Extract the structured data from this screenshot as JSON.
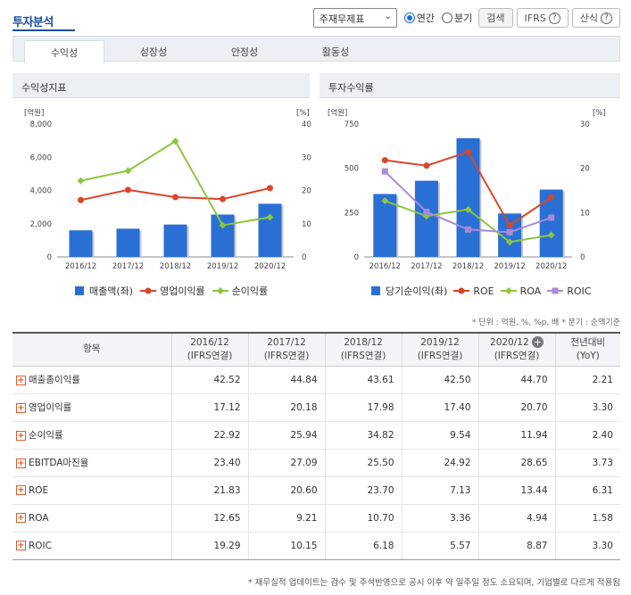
{
  "title": "투자분석",
  "controls": {
    "select_value": "주재무제표",
    "radio_annual": "연간",
    "radio_quarter": "분기",
    "search_button": "검색",
    "ifrs_button": "IFRS",
    "formula_button": "산식",
    "help_mark": "?"
  },
  "tabs": [
    "수익성",
    "성장성",
    "안정성",
    "활동성"
  ],
  "left_panel": {
    "title": "수익성지표",
    "left_unit": "[억원]",
    "right_unit": "[%]",
    "legend": [
      "매출액(좌)",
      "영업이익률",
      "순이익률"
    ]
  },
  "right_panel": {
    "title": "투자수익률",
    "left_unit": "[억원]",
    "right_unit": "[%]",
    "legend": [
      "당기순이익(좌)",
      "ROE",
      "ROA",
      "ROIC"
    ]
  },
  "chart_data": [
    {
      "type": "bar",
      "categories": [
        "2016/12",
        "2017/12",
        "2018/12",
        "2019/12",
        "2020/12"
      ],
      "y_left_ticks": [
        "0",
        "2,000",
        "4,000",
        "6,000",
        "8,000"
      ],
      "y_right_ticks": [
        "0",
        "10",
        "20",
        "30",
        "40"
      ],
      "ylim_left": [
        0,
        8000
      ],
      "ylim_right": [
        0,
        40
      ],
      "series": [
        {
          "name": "매출액(좌)",
          "kind": "bar",
          "axis": "left",
          "color": "#2a6fd4",
          "values": [
            1600,
            1700,
            1950,
            2550,
            3200
          ]
        },
        {
          "name": "영업이익률",
          "kind": "line",
          "axis": "right",
          "color": "#d9452b",
          "values": [
            17.12,
            20.18,
            17.98,
            17.4,
            20.7
          ]
        },
        {
          "name": "순이익률",
          "kind": "line",
          "axis": "right",
          "color": "#8cc63f",
          "values": [
            22.92,
            25.94,
            34.82,
            9.54,
            11.94
          ]
        }
      ]
    },
    {
      "type": "bar",
      "categories": [
        "2016/12",
        "2017/12",
        "2018/12",
        "2019/12",
        "2020/12"
      ],
      "y_left_ticks": [
        "0",
        "250",
        "500",
        "750"
      ],
      "y_right_ticks": [
        "0",
        "10",
        "20",
        "30"
      ],
      "ylim_left": [
        0,
        750
      ],
      "ylim_right": [
        0,
        30
      ],
      "series": [
        {
          "name": "당기순이익(좌)",
          "kind": "bar",
          "axis": "left",
          "color": "#2a6fd4",
          "values": [
            355,
            430,
            670,
            245,
            380
          ]
        },
        {
          "name": "ROE",
          "kind": "line",
          "axis": "right",
          "color": "#d9452b",
          "values": [
            21.83,
            20.6,
            23.7,
            7.13,
            13.44
          ]
        },
        {
          "name": "ROA",
          "kind": "line",
          "axis": "right",
          "color": "#8cc63f",
          "values": [
            12.65,
            9.21,
            10.7,
            3.36,
            4.94
          ]
        },
        {
          "name": "ROIC",
          "kind": "line",
          "axis": "right",
          "color": "#a98ad8",
          "values": [
            19.29,
            10.15,
            6.18,
            5.57,
            8.87
          ]
        }
      ]
    }
  ],
  "unit_note": "* 단위 : 억원, %, %p, 배    * 분기 : 순액기준",
  "table": {
    "headers": [
      {
        "line1": "항목",
        "line2": ""
      },
      {
        "line1": "2016/12",
        "line2": "(IFRS연결)"
      },
      {
        "line1": "2017/12",
        "line2": "(IFRS연결)"
      },
      {
        "line1": "2018/12",
        "line2": "(IFRS연결)"
      },
      {
        "line1": "2019/12",
        "line2": "(IFRS연결)"
      },
      {
        "line1": "2020/12",
        "line2": "(IFRS연결)"
      },
      {
        "line1": "전년대비",
        "line2": "(YoY)"
      }
    ],
    "header_plus": "+",
    "rows": [
      {
        "label": "매출총이익률",
        "values": [
          "42.52",
          "44.84",
          "43.61",
          "42.50",
          "44.70",
          "2.21"
        ]
      },
      {
        "label": "영업이익률",
        "values": [
          "17.12",
          "20.18",
          "17.98",
          "17.40",
          "20.70",
          "3.30"
        ]
      },
      {
        "label": "순이익률",
        "values": [
          "22.92",
          "25.94",
          "34.82",
          "9.54",
          "11.94",
          "2.40"
        ]
      },
      {
        "label": "EBITDA마진율",
        "values": [
          "23.40",
          "27.09",
          "25.50",
          "24.92",
          "28.65",
          "3.73"
        ]
      },
      {
        "label": "ROE",
        "values": [
          "21.83",
          "20.60",
          "23.70",
          "7.13",
          "13.44",
          "6.31"
        ]
      },
      {
        "label": "ROA",
        "values": [
          "12.65",
          "9.21",
          "10.70",
          "3.36",
          "4.94",
          "1.58"
        ]
      },
      {
        "label": "ROIC",
        "values": [
          "19.29",
          "10.15",
          "6.18",
          "5.57",
          "8.87",
          "3.30"
        ]
      }
    ]
  },
  "footer_note": "* 재무실적 업데이트는 검수 및 주석반영으로 공시 이후 약 일주일 정도 소요되며, 기업별로 다르게 적용됨"
}
